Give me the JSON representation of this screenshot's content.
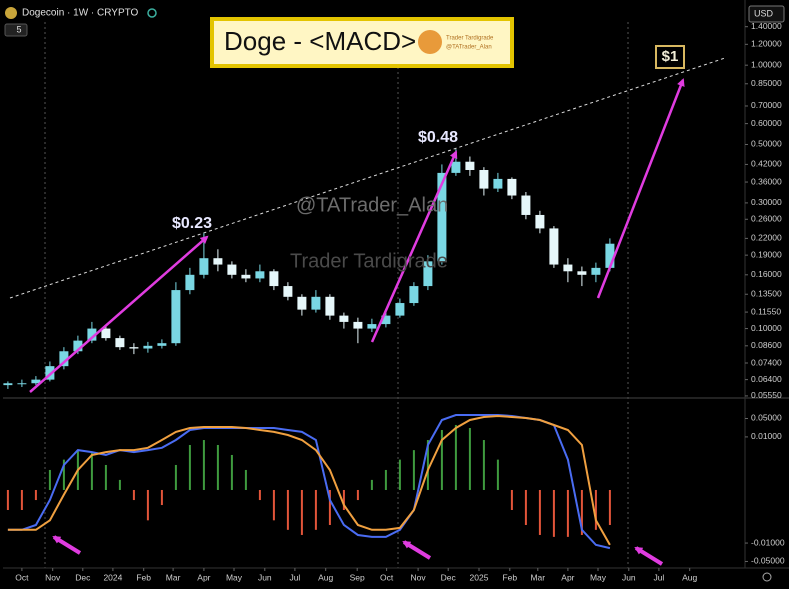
{
  "header": {
    "symbol": "Dogecoin · 1W · CRYPTO",
    "interval": "5",
    "currency": "USD"
  },
  "chart_data": [
    {
      "type": "candlestick",
      "title": "Doge - <MACD>",
      "logo": [
        "Trader Tardigrade",
        "@TATrader_Alan"
      ],
      "watermarks": [
        "@TATrader_Alan",
        "Trader Tardigrade"
      ],
      "annotations": [
        "$0.23",
        "$0.48",
        "$1"
      ],
      "x": [
        -2,
        0,
        2,
        4,
        6,
        8,
        10,
        12,
        14,
        16,
        18,
        20,
        22,
        24,
        26,
        28,
        30,
        32,
        34,
        36,
        38,
        40,
        42,
        44,
        46,
        48,
        50,
        52,
        54,
        56,
        58,
        60,
        62,
        64,
        66,
        68,
        70,
        72,
        74,
        76,
        78,
        80,
        82,
        84
      ],
      "open": [
        0.061,
        0.062,
        0.062,
        0.064,
        0.072,
        0.082,
        0.09,
        0.1,
        0.092,
        0.085,
        0.084,
        0.086,
        0.088,
        0.14,
        0.16,
        0.185,
        0.175,
        0.16,
        0.155,
        0.165,
        0.145,
        0.132,
        0.118,
        0.132,
        0.112,
        0.106,
        0.1,
        0.104,
        0.112,
        0.125,
        0.145,
        0.18,
        0.39,
        0.43,
        0.4,
        0.34,
        0.37,
        0.32,
        0.27,
        0.24,
        0.175,
        0.165,
        0.16,
        0.17
      ],
      "high": [
        0.063,
        0.064,
        0.066,
        0.075,
        0.085,
        0.094,
        0.106,
        0.103,
        0.094,
        0.088,
        0.089,
        0.091,
        0.15,
        0.17,
        0.23,
        0.2,
        0.18,
        0.168,
        0.175,
        0.168,
        0.15,
        0.135,
        0.14,
        0.135,
        0.115,
        0.11,
        0.109,
        0.118,
        0.13,
        0.15,
        0.19,
        0.42,
        0.48,
        0.45,
        0.41,
        0.39,
        0.375,
        0.33,
        0.28,
        0.245,
        0.185,
        0.172,
        0.178,
        0.22
      ],
      "low": [
        0.059,
        0.06,
        0.061,
        0.063,
        0.07,
        0.08,
        0.088,
        0.09,
        0.083,
        0.08,
        0.081,
        0.084,
        0.086,
        0.135,
        0.155,
        0.165,
        0.155,
        0.15,
        0.15,
        0.14,
        0.128,
        0.112,
        0.115,
        0.108,
        0.1,
        0.088,
        0.097,
        0.101,
        0.11,
        0.122,
        0.14,
        0.175,
        0.38,
        0.38,
        0.32,
        0.33,
        0.31,
        0.26,
        0.23,
        0.17,
        0.15,
        0.145,
        0.15,
        0.165
      ],
      "close": [
        0.062,
        0.062,
        0.064,
        0.072,
        0.082,
        0.09,
        0.1,
        0.092,
        0.085,
        0.084,
        0.086,
        0.088,
        0.14,
        0.16,
        0.185,
        0.175,
        0.16,
        0.155,
        0.165,
        0.145,
        0.132,
        0.118,
        0.132,
        0.112,
        0.106,
        0.1,
        0.104,
        0.112,
        0.125,
        0.145,
        0.18,
        0.39,
        0.43,
        0.4,
        0.34,
        0.37,
        0.32,
        0.27,
        0.24,
        0.175,
        0.165,
        0.16,
        0.17,
        0.21
      ],
      "up_color": "#7ad7e3",
      "down_color": "#e6f7fa",
      "xlim": [
        -2.7,
        103.3
      ],
      "ylim": [
        0.0545,
        1.62
      ],
      "yscale": "log",
      "yticks": [
        {
          "value": 1.4,
          "label": "1.40000"
        },
        {
          "value": 1.2,
          "label": "1.20000"
        },
        {
          "value": 1.0,
          "label": "1.00000"
        },
        {
          "value": 0.85,
          "label": "0.85000"
        },
        {
          "value": 0.7,
          "label": "0.70000"
        },
        {
          "value": 0.6,
          "label": "0.60000"
        },
        {
          "value": 0.5,
          "label": "0.50000"
        },
        {
          "value": 0.42,
          "label": "0.42000"
        },
        {
          "value": 0.36,
          "label": "0.36000"
        },
        {
          "value": 0.3,
          "label": "0.30000"
        },
        {
          "value": 0.26,
          "label": "0.26000"
        },
        {
          "value": 0.22,
          "label": "0.22000"
        },
        {
          "value": 0.19,
          "label": "0.19000"
        },
        {
          "value": 0.16,
          "label": "0.16000"
        },
        {
          "value": 0.135,
          "label": "0.13500"
        },
        {
          "value": 0.1155,
          "label": "0.11550"
        },
        {
          "value": 0.1,
          "label": "0.10000"
        },
        {
          "value": 0.086,
          "label": "0.08600"
        },
        {
          "value": 0.074,
          "label": "0.07400"
        },
        {
          "value": 0.064,
          "label": "0.06400"
        },
        {
          "value": 0.0555,
          "label": "0.05550"
        }
      ]
    },
    {
      "type": "macd",
      "x": [
        -2,
        0,
        2,
        4,
        6,
        8,
        10,
        12,
        14,
        16,
        18,
        20,
        22,
        24,
        26,
        28,
        30,
        32,
        34,
        36,
        38,
        40,
        42,
        44,
        46,
        48,
        50,
        52,
        54,
        56,
        58,
        60,
        62,
        64,
        66,
        68,
        70,
        72,
        74,
        76,
        78,
        80,
        82,
        84
      ],
      "histogram": {
        "up_color": "#3f9b3f",
        "down_color": "#e2553a",
        "values": [
          -0.00047,
          -0.00047,
          -0.00014,
          0.00047,
          0.0013,
          0.0031,
          0.0026,
          0.00078,
          0.00014,
          -0.00014,
          -0.0013,
          -0.00027,
          0.00078,
          0.0049,
          0.0076,
          0.0049,
          0.002,
          0.00047,
          -0.00014,
          -0.0013,
          -0.0031,
          -0.0049,
          -0.0031,
          -0.002,
          -0.00047,
          -0.00014,
          0.00014,
          0.00047,
          0.0013,
          0.0031,
          0.0076,
          0.0183,
          0.0284,
          0.0218,
          0.0076,
          0.0013,
          -0.00047,
          -0.002,
          -0.0049,
          -0.0058,
          -0.0058,
          -0.0049,
          -0.0031,
          -0.002
        ]
      },
      "series": [
        {
          "color": "#4a6cf2",
          "values": [
            -0.0031,
            -0.0031,
            -0.002,
            -0.00014,
            0.00078,
            0.0031,
            0.0026,
            0.002,
            0.0031,
            0.0026,
            0.0031,
            0.0038,
            0.0076,
            0.0183,
            0.0218,
            0.0218,
            0.0218,
            0.0218,
            0.0218,
            0.0218,
            0.0183,
            0.0155,
            0.0076,
            -0.00014,
            -0.002,
            -0.0049,
            -0.0058,
            -0.0058,
            -0.0031,
            -0.00047,
            0.0049,
            0.044,
            0.068,
            0.068,
            0.068,
            0.068,
            0.0622,
            0.0523,
            0.044,
            0.0284,
            0.0013,
            -0.0031,
            -0.0118,
            -0.0155
          ]
        },
        {
          "color": "#f0a040",
          "values": [
            -0.0031,
            -0.0031,
            -0.0031,
            -0.0013,
            -5e-05,
            0.00047,
            0.002,
            0.0026,
            0.0031,
            0.0031,
            0.0038,
            0.0076,
            0.0155,
            0.0218,
            0.0238,
            0.0238,
            0.0238,
            0.0218,
            0.0183,
            0.0155,
            0.0118,
            0.0076,
            0.0031,
            0.00047,
            -0.00027,
            -0.002,
            -0.0031,
            -0.0031,
            -0.0026,
            -0.00047,
            0.00047,
            0.0076,
            0.0218,
            0.044,
            0.057,
            0.0622,
            0.057,
            0.0523,
            0.044,
            0.0284,
            0.0183,
            0.0049,
            -0.0013,
            -0.0118
          ]
        }
      ],
      "xlim": [
        -2.7,
        103.3
      ],
      "ylim": [
        -0.068,
        0.25
      ],
      "yscale": "symlog",
      "linthresh": 0.0001,
      "yticks": [
        {
          "value": 0.05,
          "label": "0.05000"
        },
        {
          "value": 0.01,
          "label": "0.01000"
        },
        {
          "value": -0.01,
          "label": "-0.01000"
        },
        {
          "value": -0.05,
          "label": "-0.05000"
        }
      ],
      "xticks": [
        {
          "value": 0,
          "label": "Oct"
        },
        {
          "value": 4.4,
          "label": "Nov"
        },
        {
          "value": 8.7,
          "label": "Dec"
        },
        {
          "value": 13,
          "label": "2024"
        },
        {
          "value": 17.4,
          "label": "Feb"
        },
        {
          "value": 21.6,
          "label": "Mar"
        },
        {
          "value": 26,
          "label": "Apr"
        },
        {
          "value": 30.3,
          "label": "May"
        },
        {
          "value": 34.7,
          "label": "Jun"
        },
        {
          "value": 39,
          "label": "Jul"
        },
        {
          "value": 43.4,
          "label": "Aug"
        },
        {
          "value": 47.9,
          "label": "Sep"
        },
        {
          "value": 52.1,
          "label": "Oct"
        },
        {
          "value": 56.6,
          "label": "Nov"
        },
        {
          "value": 60.9,
          "label": "Dec"
        },
        {
          "value": 65.3,
          "label": "2025"
        },
        {
          "value": 69.7,
          "label": "Feb"
        },
        {
          "value": 73.7,
          "label": "Mar"
        },
        {
          "value": 78,
          "label": "Apr"
        },
        {
          "value": 82.3,
          "label": "May"
        },
        {
          "value": 86.7,
          "label": "Jun"
        },
        {
          "value": 91,
          "label": "Jul"
        },
        {
          "value": 95.4,
          "label": "Aug"
        }
      ]
    }
  ]
}
